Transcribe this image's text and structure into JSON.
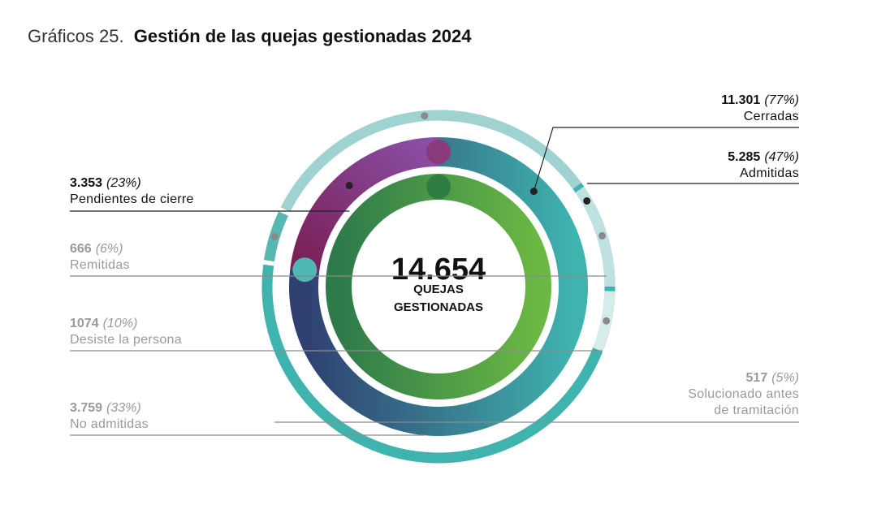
{
  "title": {
    "prefix": "Gráficos 25.",
    "main": "Gestión de las quejas gestionadas 2024"
  },
  "colors": {
    "cerradas": "#3fb3ae",
    "admitidas_start": "#3fb3ae",
    "admitidas_end": "#2f3f70",
    "pendientes_start": "#7a1f55",
    "pendientes_end": "#8a4fa6",
    "no_admitidas": "#9fd3d1",
    "desiste": "#bfe2e0",
    "remitidas": "#d6ecea",
    "solucionado": "#57b7b1",
    "inner_start": "#2e7a4a",
    "inner_end": "#6bb844",
    "dark_text": "#111111",
    "gray_text": "#9a9a9a",
    "line_dark": "#222222",
    "line_gray": "#8a8a8a"
  },
  "chart_data": {
    "type": "pie",
    "total": 14654,
    "center": {
      "number": "14.654",
      "line1": "QUEJAS",
      "line2": "GESTIONADAS"
    },
    "series": [
      {
        "key": "cerradas",
        "value": "11.301",
        "pct": "(77%)",
        "label": [
          "Cerradas"
        ],
        "share": 0.77
      },
      {
        "key": "admitidas",
        "value": "5.285",
        "pct": "(47%)",
        "label": [
          "Admitidas"
        ],
        "share": 0.47
      },
      {
        "key": "pendientes",
        "value": "3.353",
        "pct": "(23%)",
        "label": [
          "Pendientes de cierre"
        ],
        "share": 0.23
      },
      {
        "key": "remitidas",
        "value": "666",
        "pct": "(6%)",
        "label": [
          "Remitidas"
        ],
        "share": 0.06
      },
      {
        "key": "desiste",
        "value": "1074",
        "pct": "(10%)",
        "label": [
          "Desiste la persona"
        ],
        "share": 0.1
      },
      {
        "key": "no_admitidas",
        "value": "3.759",
        "pct": "(33%)",
        "label": [
          "No admitidas"
        ],
        "share": 0.33
      },
      {
        "key": "solucionado",
        "value": "517",
        "pct": "(5%)",
        "label": [
          "Solucionado antes",
          "de tramitación"
        ],
        "share": 0.05
      }
    ]
  }
}
